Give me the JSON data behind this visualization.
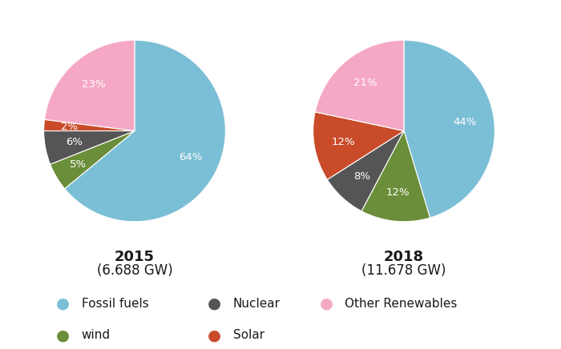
{
  "chart1": {
    "year": "2015",
    "subtitle": "(6.688 GW)",
    "sizes": [
      64,
      5,
      6,
      2,
      23
    ],
    "labels": [
      "64%",
      "5%",
      "6%",
      "2%",
      "23%"
    ],
    "colors": [
      "#7BBFD6",
      "#6B8E3A",
      "#555555",
      "#C94B2A",
      "#F5A8C5"
    ],
    "label_r": [
      0.68,
      0.72,
      0.68,
      0.72,
      0.68
    ]
  },
  "chart2": {
    "year": "2018",
    "subtitle": "(11.678 GW)",
    "sizes": [
      44,
      12,
      8,
      12,
      21
    ],
    "labels": [
      "44%",
      "12%",
      "8%",
      "12%",
      "21%"
    ],
    "colors": [
      "#7BBFD6",
      "#6B8E3A",
      "#555555",
      "#C94B2A",
      "#F5A8C5"
    ],
    "label_r": [
      0.68,
      0.68,
      0.68,
      0.68,
      0.68
    ]
  },
  "legend_items": [
    {
      "label": "Fossil fuels",
      "color": "#7BBFD6"
    },
    {
      "label": "Nuclear",
      "color": "#555555"
    },
    {
      "label": "Other Renewables",
      "color": "#F5A8C5"
    },
    {
      "label": "wind",
      "color": "#6B8E3A"
    },
    {
      "label": "Solar",
      "color": "#C94B2A"
    }
  ],
  "background_color": "#ffffff",
  "text_color": "#1a1a1a",
  "label_fontsize": 9.5,
  "year_fontsize": 13,
  "subtitle_fontsize": 12
}
